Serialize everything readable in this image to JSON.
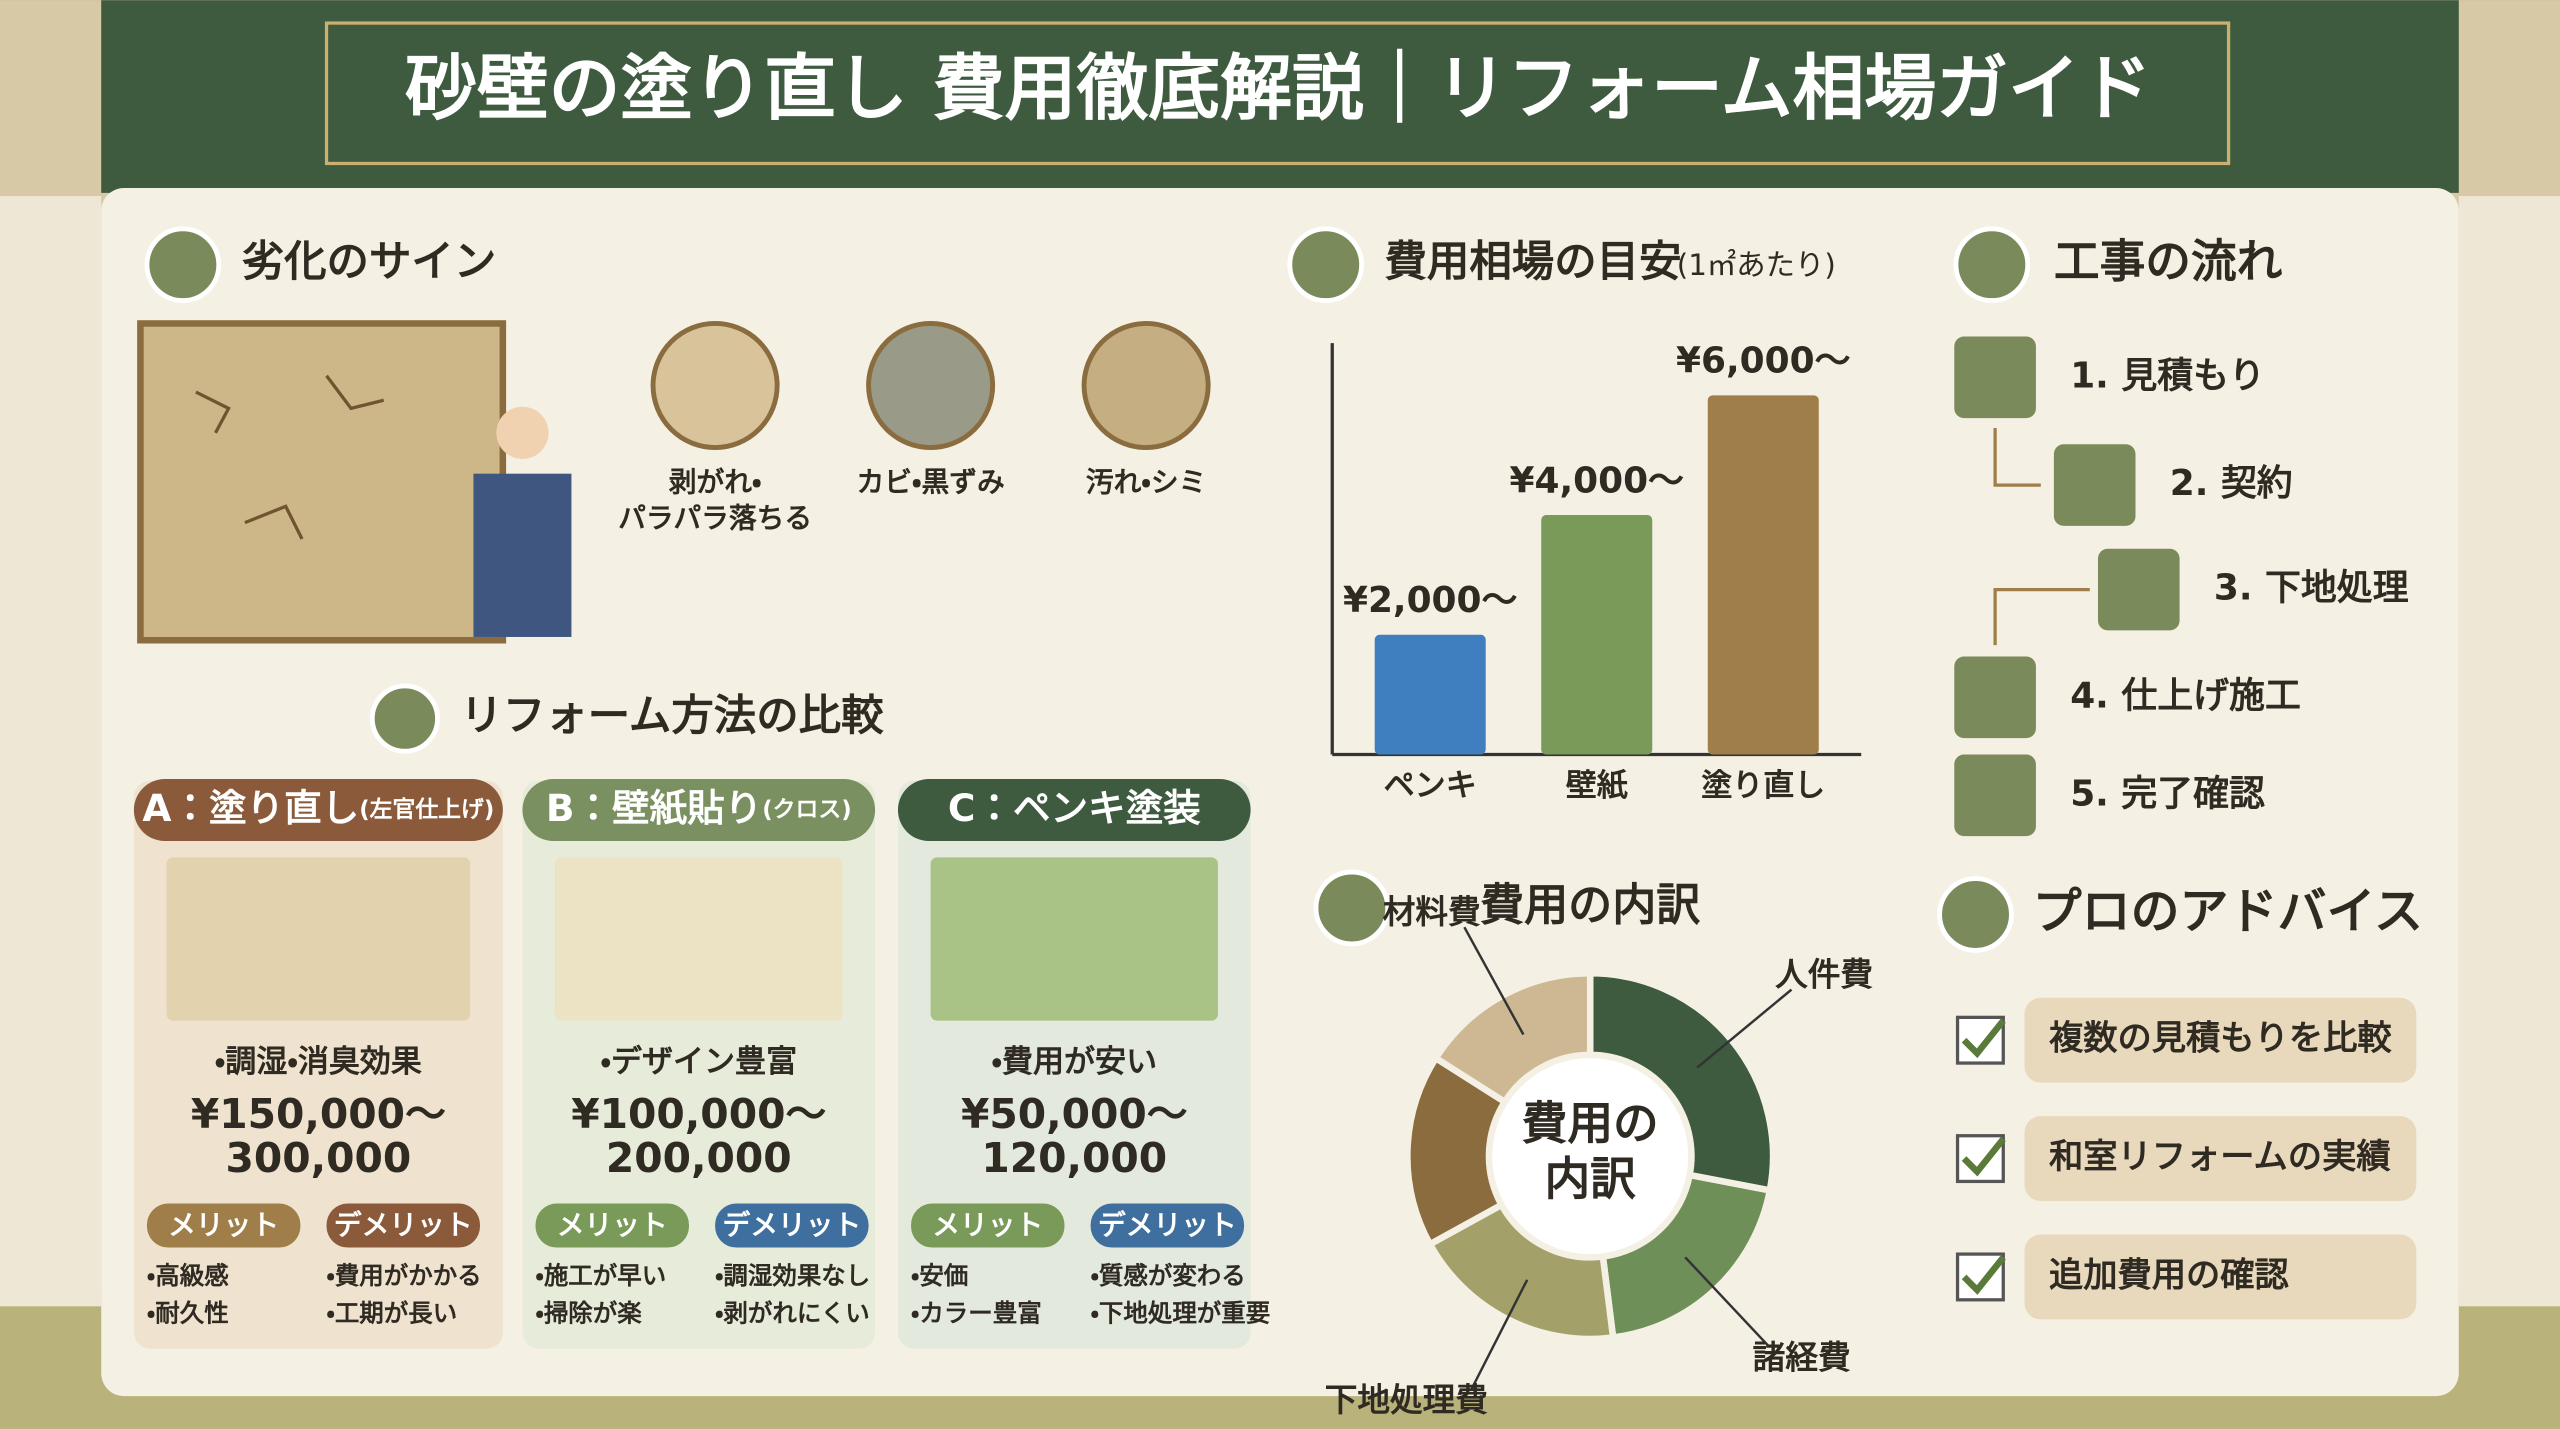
{
  "header": {
    "title": "砂壁の塗り直し 費用徹底解説｜リフォーム相場ガイド"
  },
  "signs": {
    "title": "劣化のサイン",
    "items": [
      [
        "剥がれ・",
        "パラパラ落ちる"
      ],
      [
        "カビ・黒ずみ"
      ],
      [
        "汚れ・シミ"
      ]
    ]
  },
  "comparison": {
    "title": "リフォーム方法の比較",
    "methods": [
      {
        "label": "A：塗り直し",
        "sub": "(左官仕上げ)",
        "feature": "・調湿・消臭効果",
        "price": [
          "¥150,000〜",
          "300,000"
        ],
        "merit_label": "メリット",
        "demerit_label": "デメリット",
        "merits": [
          "・高級感",
          "・耐久性"
        ],
        "demerits": [
          "・費用がかかる",
          "・工期が長い"
        ]
      },
      {
        "label": "B：壁紙貼り",
        "sub": "(クロス)",
        "feature": "・デザイン豊富",
        "price": [
          "¥100,000〜",
          "200,000"
        ],
        "merit_label": "メリット",
        "demerit_label": "デメリット",
        "merits": [
          "・施工が早い",
          "・掃除が楽"
        ],
        "demerits": [
          "・調湿効果なし",
          "・剥がれにくい"
        ]
      },
      {
        "label": "C：ペンキ塗装",
        "sub": "",
        "feature": "・費用が安い",
        "price": [
          "¥50,000〜",
          "120,000"
        ],
        "merit_label": "メリット",
        "demerit_label": "デメリット",
        "merits": [
          "・安価",
          "・カラー豊富"
        ],
        "demerits": [
          "・質感が変わる",
          "・下地処理が重要"
        ]
      }
    ]
  },
  "chart_data": [
    {
      "type": "bar",
      "title": "費用相場の目安",
      "subtitle": "(1㎡あたり)",
      "categories": [
        "ペンキ",
        "壁紙",
        "塗り直し"
      ],
      "values": [
        2000,
        4000,
        6000
      ],
      "value_labels": [
        "¥2,000〜",
        "¥4,000〜",
        "¥6,000〜"
      ],
      "colors": [
        "#3f7fbf",
        "#7a9a5a",
        "#a07e4a"
      ]
    },
    {
      "type": "pie",
      "title": "費用の内訳",
      "center_label": [
        "費用の",
        "内訳"
      ],
      "categories": [
        "人件費",
        "諸経費",
        "下地処理費",
        null,
        "材料費"
      ],
      "values": [
        28,
        20,
        19,
        17,
        16
      ],
      "colors": [
        "#3e5a3f",
        "#6f8f58",
        "#a4a06a",
        "#8a6c3e",
        "#cdb893"
      ]
    }
  ],
  "flow": {
    "title": "工事の流れ",
    "steps": [
      "1. 見積もり",
      "2. 契約",
      "3. 下地処理",
      "4. 仕上げ施工",
      "5. 完了確認"
    ]
  },
  "advice": {
    "title": "プロのアドバイス",
    "items": [
      "複数の見積もりを比較",
      "和室リフォームの実績",
      "追加費用の確認"
    ]
  }
}
